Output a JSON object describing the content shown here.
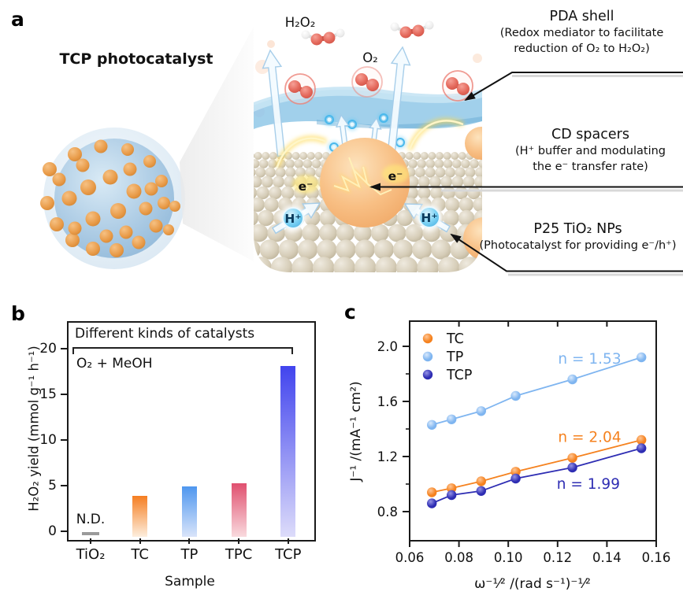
{
  "figure": {
    "background": "#ffffff"
  },
  "panels": {
    "a_label": "a",
    "b_label": "b",
    "c_label": "c"
  },
  "panel_a": {
    "title": "TCP photocatalyst",
    "labels": {
      "h2o2": "H₂O₂",
      "o2": "O₂",
      "electron": "e⁻",
      "proton": "H⁺"
    },
    "annotations": [
      {
        "title": "PDA shell",
        "lines": [
          "(Redox mediator to facilitate",
          "reduction of O₂ to H₂O₂)"
        ]
      },
      {
        "title": "CD spacers",
        "lines": [
          "(H⁺ buffer and modulating",
          "the e⁻ transfer rate)"
        ]
      },
      {
        "title": "P25 TiO₂ NPs",
        "lines": [
          "(Photocatalyst for providing e⁻/h⁺)"
        ]
      }
    ]
  },
  "chart_data": [
    {
      "type": "bar",
      "panel": "b",
      "annotation_box_label": "Different kinds of catalysts",
      "condition_label": "O₂ + MeOH",
      "categories": [
        "TiO₂",
        "TC",
        "TP",
        "TPC",
        "TCP"
      ],
      "values": [
        0,
        3.9,
        4.9,
        5.3,
        18.1
      ],
      "nd": {
        "index": 0,
        "label": "N.D."
      },
      "xlabel": "Sample",
      "ylabel": "H₂O₂ yield (mmol g⁻¹ h⁻¹)",
      "yticks": [
        0,
        5,
        10,
        15,
        20
      ],
      "ylim": [
        -0.8,
        23
      ],
      "grid": false,
      "bar_colors": [
        [
          "#9a9a9a",
          "#9a9a9a"
        ],
        [
          "#f57e22",
          "#fdeedd"
        ],
        [
          "#4f97ef",
          "#d9e4fa"
        ],
        [
          "#e0506f",
          "#f9dade"
        ],
        [
          "#4144ee",
          "#dddcfa"
        ]
      ],
      "nd_color": "#9a9a9a"
    },
    {
      "type": "scatter",
      "panel": "c",
      "x": [
        0.069,
        0.077,
        0.089,
        0.103,
        0.126,
        0.154
      ],
      "series": [
        {
          "name": "TC",
          "color": "#f5821f",
          "highlight": "#ffc696",
          "values": [
            0.94,
            0.97,
            1.02,
            1.09,
            1.19,
            1.32
          ],
          "n_label": "n = 2.04",
          "n_label_pos": [
            0.133,
            1.34
          ]
        },
        {
          "name": "TP",
          "color": "#7fb5f0",
          "highlight": "#d9e9fc",
          "values": [
            1.43,
            1.47,
            1.53,
            1.64,
            1.76,
            1.92
          ],
          "n_label": "n = 1.53",
          "n_label_pos": [
            0.133,
            1.91
          ]
        },
        {
          "name": "TCP",
          "color": "#2e2db3",
          "highlight": "#9593e6",
          "values": [
            0.86,
            0.92,
            0.95,
            1.04,
            1.12,
            1.26
          ],
          "n_label": "n = 1.99",
          "n_label_pos": [
            0.1325,
            1.0
          ]
        }
      ],
      "legend_order": [
        "TC",
        "TP",
        "TCP"
      ],
      "legend_position": "top-left",
      "xlabel": "ω⁻¹⁄² /(rad s⁻¹)⁻¹⁄²",
      "ylabel": "J⁻¹ /(mA⁻¹ cm²)",
      "xticks": [
        0.06,
        0.08,
        0.1,
        0.12,
        0.14,
        0.16
      ],
      "yticks": [
        0.8,
        1.2,
        1.6,
        2.0
      ],
      "yticks_minor": [
        1.0,
        1.4,
        1.8
      ],
      "xlim": [
        0.06,
        0.16
      ],
      "ylim": [
        0.6,
        2.2
      ],
      "grid": false
    }
  ]
}
